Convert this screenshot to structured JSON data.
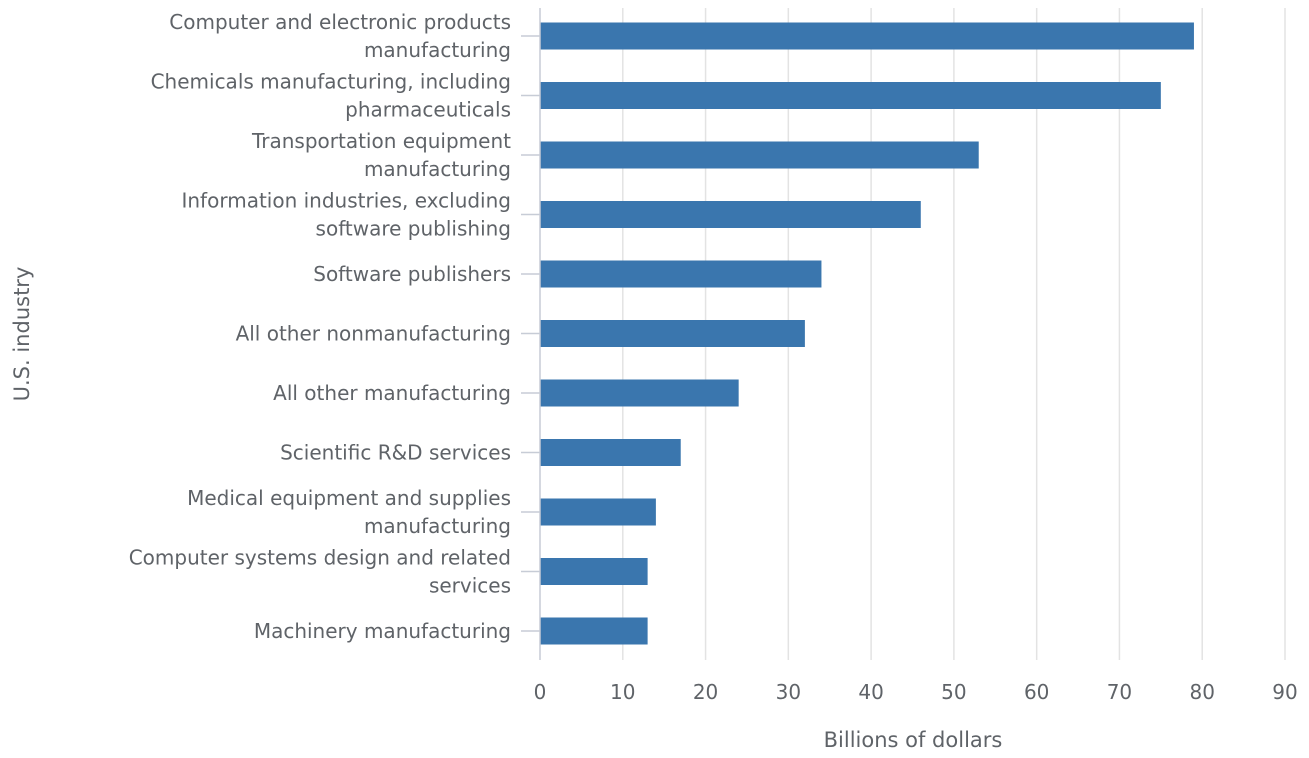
{
  "chart_data": {
    "type": "bar",
    "orientation": "horizontal",
    "xlabel": "Billions of dollars",
    "ylabel": "U.S. industry",
    "xlim": [
      0,
      90
    ],
    "xticks": [
      0,
      10,
      20,
      30,
      40,
      50,
      60,
      70,
      80,
      90
    ],
    "grid": true,
    "bar_color": "#3a76ae",
    "categories": [
      "Computer and electronic products manufacturing",
      "Chemicals manufacturing, including pharmaceuticals",
      "Transportation equipment manufacturing",
      "Information industries, excluding software publishing",
      "Software publishers",
      "All other nonmanufacturing",
      "All other manufacturing",
      "Scientific R&D services",
      "Medical equipment and supplies manufacturing",
      "Computer systems design and related services",
      "Machinery manufacturing"
    ],
    "values": [
      79,
      75,
      53,
      46,
      34,
      32,
      24,
      17,
      14,
      13,
      13
    ]
  }
}
